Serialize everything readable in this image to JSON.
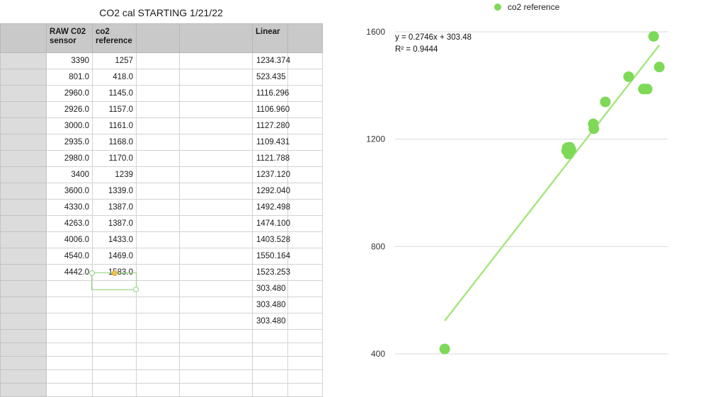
{
  "sheet": {
    "title": "CO2 cal STARTING 1/21/22",
    "headers": [
      "RAW C02 sensor",
      "co2 reference",
      "",
      "",
      "Linear",
      ""
    ],
    "rows": [
      {
        "raw": "3390",
        "ref": "1257",
        "linear": "1234.374"
      },
      {
        "raw": "801.0",
        "ref": "418.0",
        "linear": "523.435"
      },
      {
        "raw": "2960.0",
        "ref": "1145.0",
        "linear": "1116.296"
      },
      {
        "raw": "2926.0",
        "ref": "1157.0",
        "linear": "1106.960"
      },
      {
        "raw": "3000.0",
        "ref": "1161.0",
        "linear": "1127.280"
      },
      {
        "raw": "2935.0",
        "ref": "1168.0",
        "linear": "1109.431"
      },
      {
        "raw": "2980.0",
        "ref": "1170.0",
        "linear": "1121.788"
      },
      {
        "raw": "3400",
        "ref": "1239",
        "linear": "1237.120"
      },
      {
        "raw": "3600.0",
        "ref": "1339.0",
        "linear": "1292.040"
      },
      {
        "raw": "4330.0",
        "ref": "1387.0",
        "linear": "1492.498"
      },
      {
        "raw": "4263.0",
        "ref": "1387.0",
        "linear": "1474.100"
      },
      {
        "raw": "4006.0",
        "ref": "1433.0",
        "linear": "1403.528"
      },
      {
        "raw": "4540.0",
        "ref": "1469.0",
        "linear": "1550.164"
      },
      {
        "raw": "4442.0",
        "ref": "1583.0",
        "linear": "1523.253"
      },
      {
        "raw": "",
        "ref": "",
        "linear": "303.480"
      },
      {
        "raw": "",
        "ref": "",
        "linear": "303.480"
      },
      {
        "raw": "",
        "ref": "",
        "linear": "303.480"
      },
      {
        "raw": "",
        "ref": "",
        "linear": ""
      },
      {
        "raw": "",
        "ref": "",
        "linear": ""
      },
      {
        "raw": "",
        "ref": "",
        "linear": ""
      },
      {
        "raw": "",
        "ref": "",
        "linear": ""
      },
      {
        "raw": "",
        "ref": "",
        "linear": ""
      }
    ]
  },
  "chart_data": {
    "type": "scatter",
    "title": "",
    "xlabel": "",
    "ylabel": "",
    "ylim": [
      400,
      1600
    ],
    "yticks": [
      400,
      800,
      1200,
      1600
    ],
    "xlim": [
      0,
      5000
    ],
    "grid": "horizontal",
    "legend_position": "top",
    "series": [
      {
        "name": "co2 reference",
        "color": "#7ed957",
        "points": [
          {
            "x": 3390,
            "y": 1257
          },
          {
            "x": 801,
            "y": 418
          },
          {
            "x": 2960,
            "y": 1145
          },
          {
            "x": 2926,
            "y": 1157
          },
          {
            "x": 3000,
            "y": 1161
          },
          {
            "x": 2935,
            "y": 1168
          },
          {
            "x": 2980,
            "y": 1170
          },
          {
            "x": 3400,
            "y": 1239
          },
          {
            "x": 3600,
            "y": 1339
          },
          {
            "x": 4330,
            "y": 1387
          },
          {
            "x": 4263,
            "y": 1387
          },
          {
            "x": 4006,
            "y": 1433
          },
          {
            "x": 4540,
            "y": 1469
          },
          {
            "x": 4442,
            "y": 1583
          }
        ]
      }
    ],
    "trendline": {
      "slope": 0.2746,
      "intercept": 303.48,
      "x_from": 801,
      "x_to": 4540,
      "equation": "y = 0.2746x + 303.48",
      "r_squared": "R² = 0.9444",
      "color": "#a6e77f"
    }
  }
}
